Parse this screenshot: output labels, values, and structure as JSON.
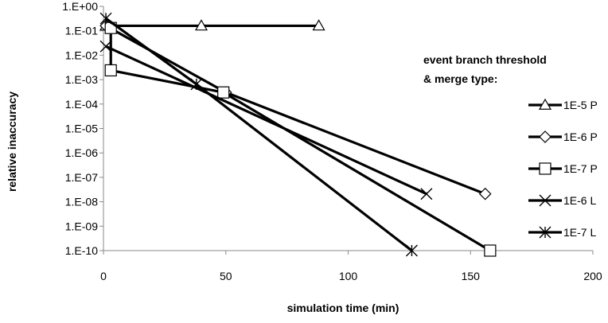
{
  "chart_data": {
    "type": "line",
    "xlabel": "simulation time (min)",
    "ylabel": "relative inaccuracy",
    "xlim": [
      0,
      200
    ],
    "ylim": [
      1e-10,
      1
    ],
    "y_scale": "log",
    "x_ticks": [
      "0",
      "50",
      "100",
      "150",
      "200"
    ],
    "y_ticks": [
      "1.E+00",
      "1.E-01",
      "1.E-02",
      "1.E-03",
      "1.E-04",
      "1.E-05",
      "1.E-06",
      "1.E-07",
      "1.E-08",
      "1.E-09",
      "1.E-10"
    ],
    "legend_title": [
      "event branch threshold",
      "& merge type:"
    ],
    "legend_position": "right",
    "grid": false,
    "series": [
      {
        "name": "1E-5 P",
        "marker": "triangle",
        "x": [
          1,
          40,
          88
        ],
        "y": [
          0.16,
          0.16,
          0.16
        ]
      },
      {
        "name": "1E-6 P",
        "marker": "diamond",
        "x": [
          1,
          50,
          156
        ],
        "y": [
          0.16,
          0.0003,
          2.1e-08
        ]
      },
      {
        "name": "1E-7 P",
        "marker": "square",
        "x": [
          3,
          3,
          49,
          158
        ],
        "y": [
          0.13,
          0.0024,
          0.0003,
          1e-10
        ]
      },
      {
        "name": "1E-6 L",
        "marker": "x",
        "x": [
          1,
          132
        ],
        "y": [
          0.023,
          2.1e-08
        ]
      },
      {
        "name": "1E-7 L",
        "marker": "star",
        "x": [
          1,
          38,
          126
        ],
        "y": [
          0.32,
          0.00065,
          1e-10
        ]
      }
    ]
  }
}
